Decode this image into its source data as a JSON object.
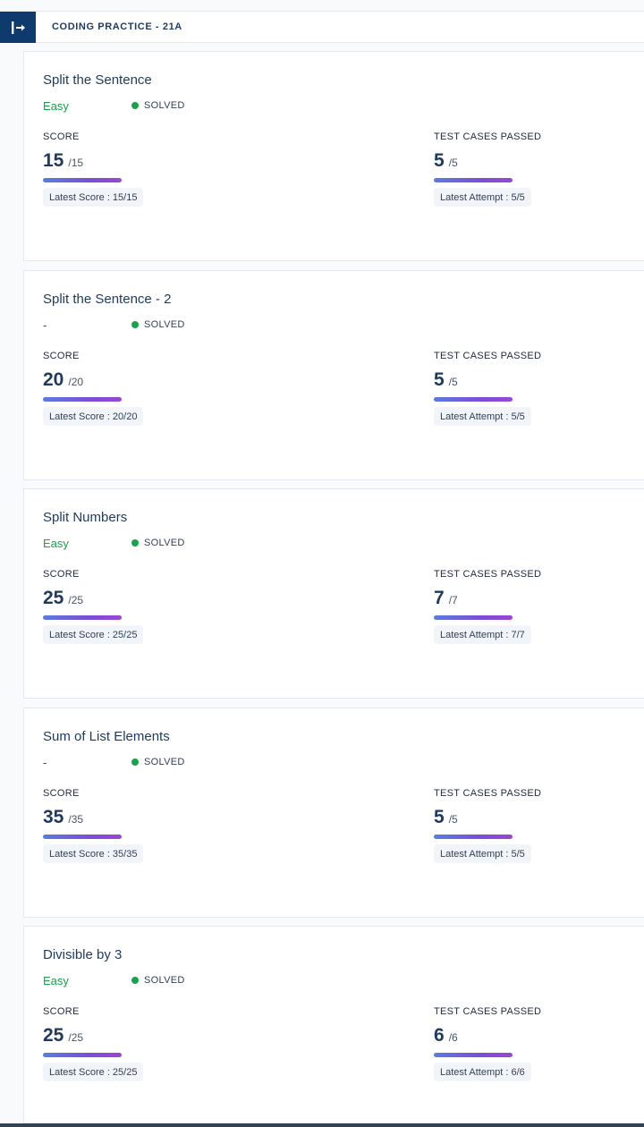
{
  "header": {
    "breadcrumb": "CODING PRACTICE - 21A",
    "toggle_icon": "sidebar-toggle-icon"
  },
  "labels": {
    "score": "SCORE",
    "test_cases": "TEST CASES PASSED",
    "latest_score_prefix": "Latest Score : ",
    "latest_attempt_prefix": "Latest Attempt : "
  },
  "colors": {
    "nav_bg": "#0e3a6e",
    "easy": "#16a34a",
    "solved_dot": "#16a34a",
    "progress_start": "#5a7ddc",
    "progress_end": "#9a47d3"
  },
  "problems": [
    {
      "title": "Split the Sentence",
      "difficulty": "Easy",
      "status": "SOLVED",
      "score": "15",
      "score_total": "/15",
      "tests": "5",
      "tests_total": "/5",
      "latest_score": "Latest Score : 15/15",
      "latest_attempt": "Latest Attempt : 5/5"
    },
    {
      "title": "Split the Sentence - 2",
      "difficulty": "-",
      "status": "SOLVED",
      "score": "20",
      "score_total": "/20",
      "tests": "5",
      "tests_total": "/5",
      "latest_score": "Latest Score : 20/20",
      "latest_attempt": "Latest Attempt : 5/5"
    },
    {
      "title": "Split Numbers",
      "difficulty": "Easy",
      "status": "SOLVED",
      "score": "25",
      "score_total": "/25",
      "tests": "7",
      "tests_total": "/7",
      "latest_score": "Latest Score : 25/25",
      "latest_attempt": "Latest Attempt : 7/7"
    },
    {
      "title": "Sum of List Elements",
      "difficulty": "-",
      "status": "SOLVED",
      "score": "35",
      "score_total": "/35",
      "tests": "5",
      "tests_total": "/5",
      "latest_score": "Latest Score : 35/35",
      "latest_attempt": "Latest Attempt : 5/5"
    },
    {
      "title": "Divisible by 3",
      "difficulty": "Easy",
      "status": "SOLVED",
      "score": "25",
      "score_total": "/25",
      "tests": "6",
      "tests_total": "/6",
      "latest_score": "Latest Score : 25/25",
      "latest_attempt": "Latest Attempt : 6/6"
    }
  ]
}
